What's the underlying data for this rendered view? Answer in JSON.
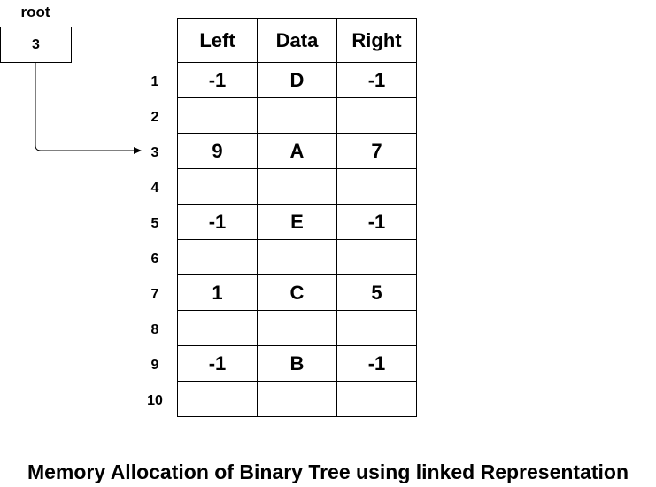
{
  "root": {
    "label": "root",
    "value": "3"
  },
  "table": {
    "headers": [
      "Left",
      "Data",
      "Right"
    ],
    "rows": [
      {
        "index": "1",
        "left": "-1",
        "data": "D",
        "right": "-1"
      },
      {
        "index": "2",
        "left": "",
        "data": "",
        "right": ""
      },
      {
        "index": "3",
        "left": "9",
        "data": "A",
        "right": "7"
      },
      {
        "index": "4",
        "left": "",
        "data": "",
        "right": ""
      },
      {
        "index": "5",
        "left": "-1",
        "data": "E",
        "right": "-1"
      },
      {
        "index": "6",
        "left": "",
        "data": "",
        "right": ""
      },
      {
        "index": "7",
        "left": "1",
        "data": "C",
        "right": "5"
      },
      {
        "index": "8",
        "left": "",
        "data": "",
        "right": ""
      },
      {
        "index": "9",
        "left": "-1",
        "data": "B",
        "right": "-1"
      },
      {
        "index": "10",
        "left": "",
        "data": "",
        "right": ""
      }
    ]
  },
  "caption": "Memory Allocation of Binary Tree using linked Representation"
}
